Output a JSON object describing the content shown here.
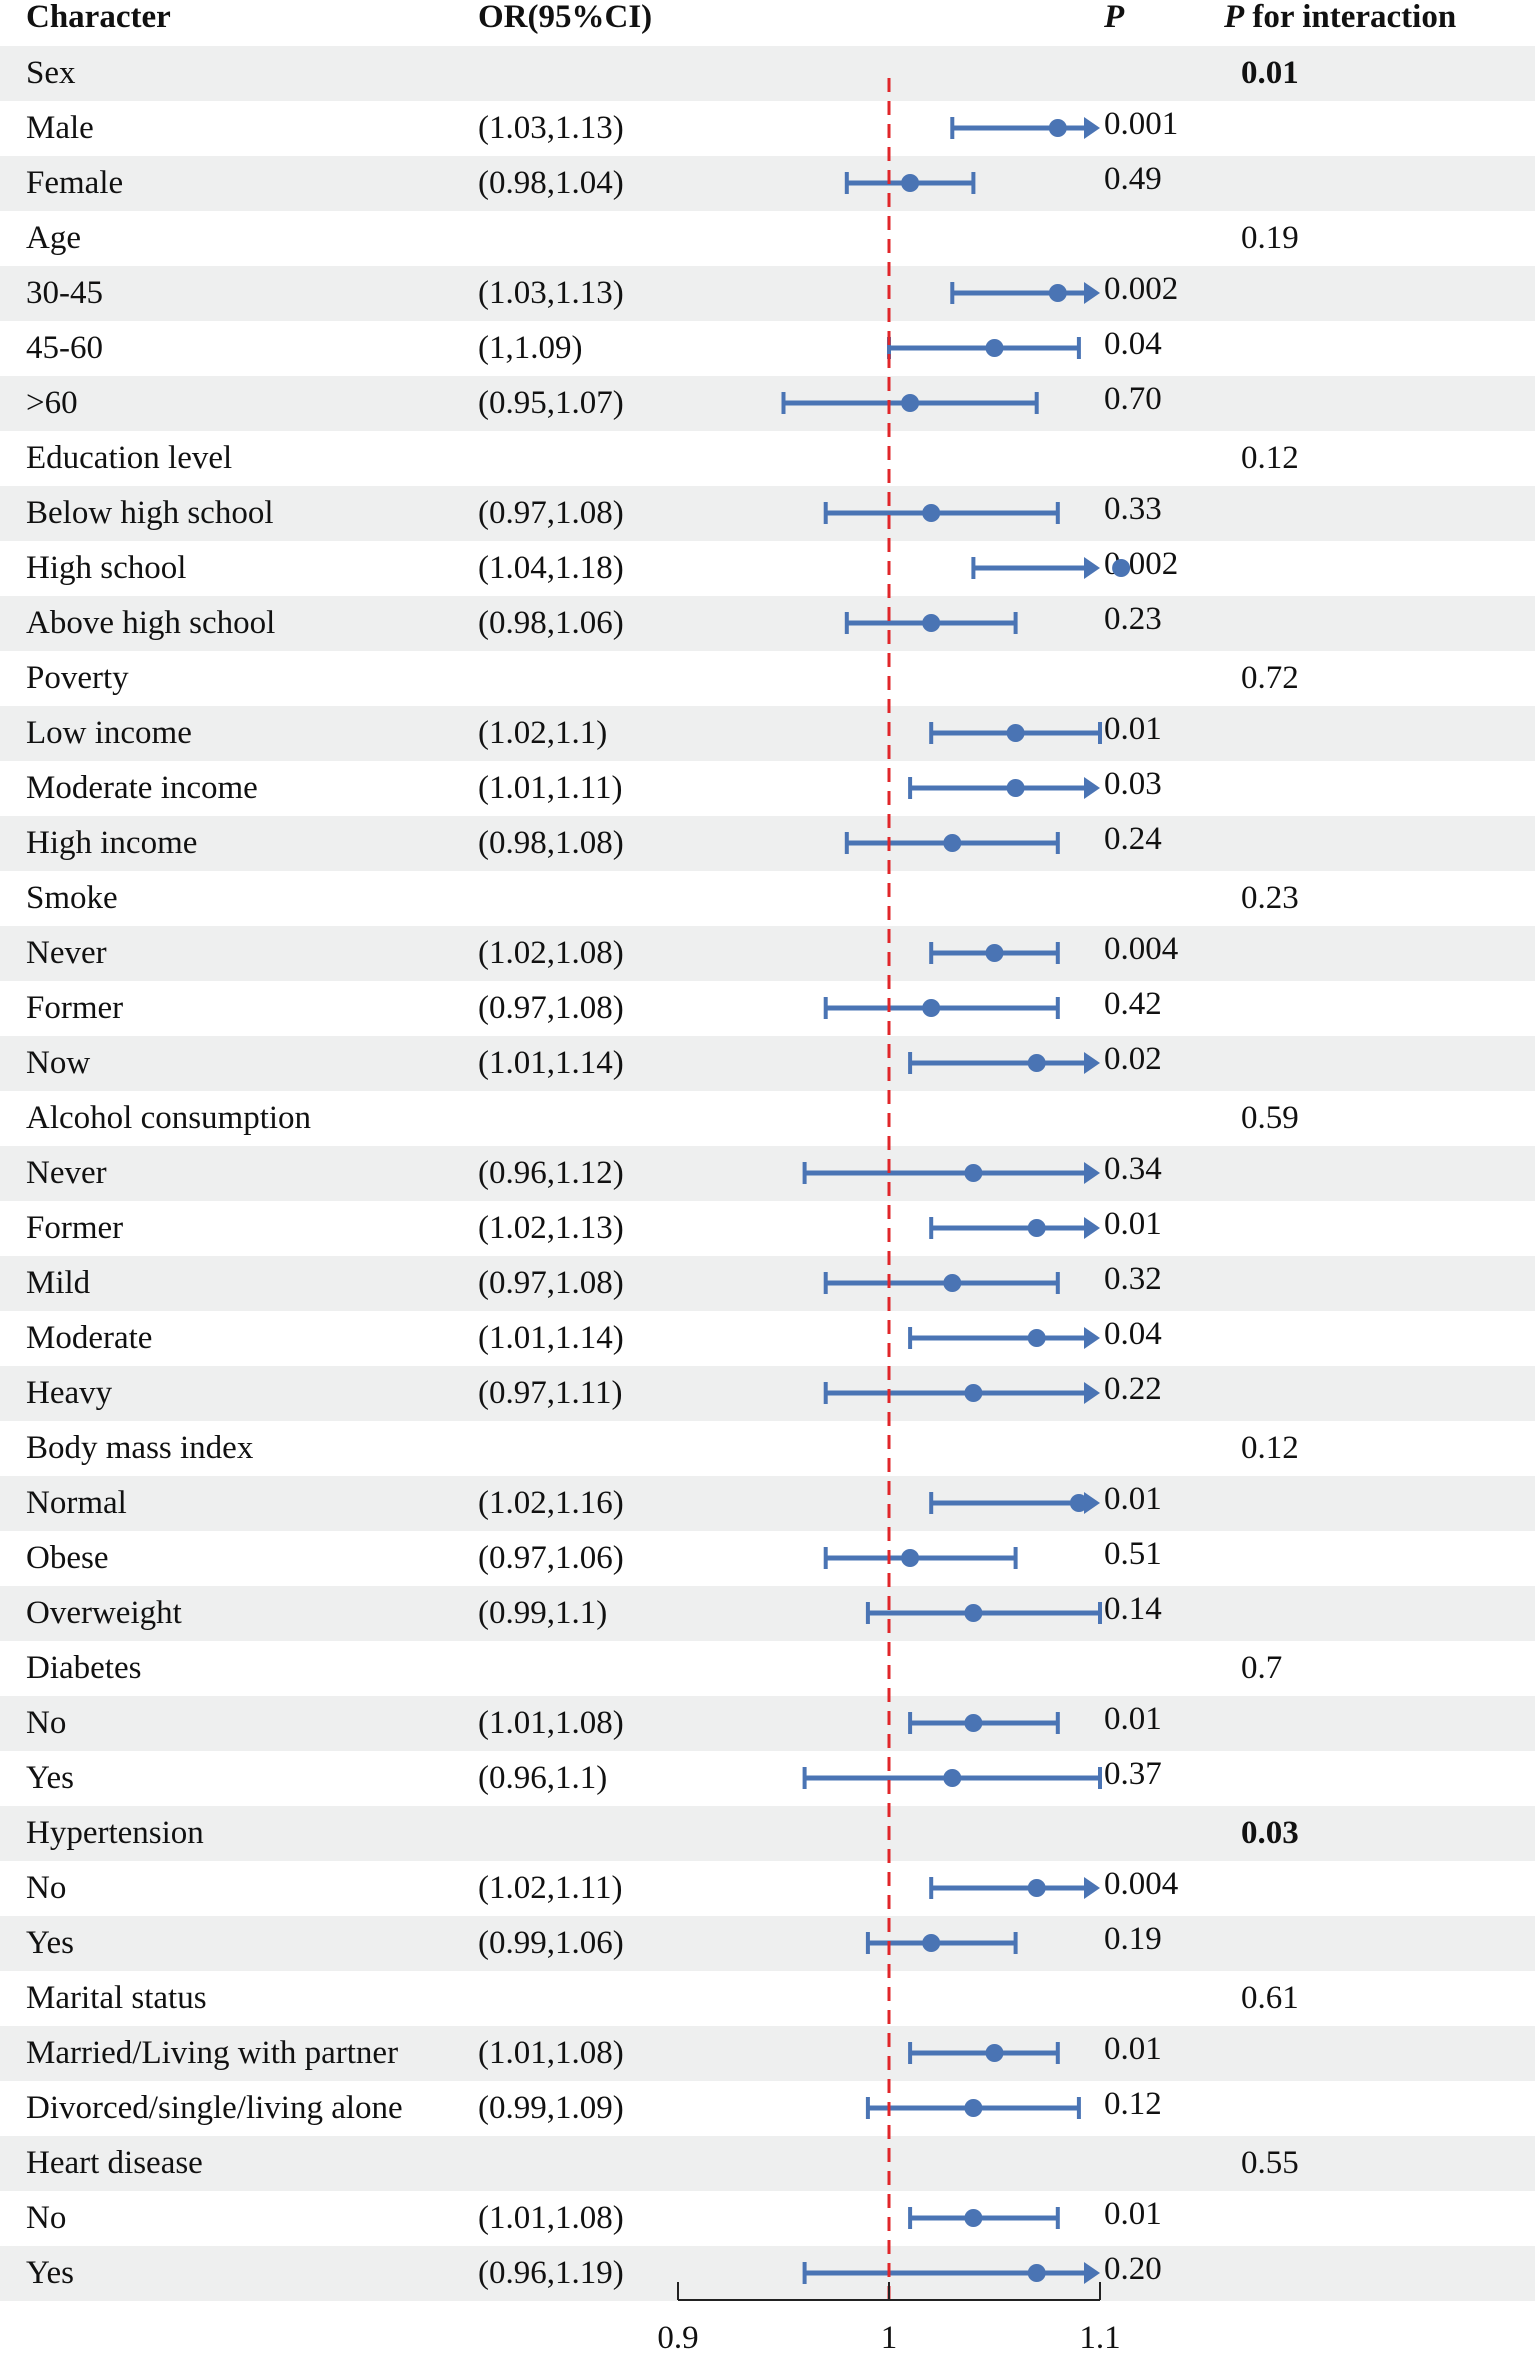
{
  "headers": {
    "character": "Character",
    "or_ci": "OR(95%CI)",
    "p": "P",
    "p_interaction_italic": "P",
    "p_interaction_rest": " for interaction"
  },
  "colors": {
    "point": "#4a74b4",
    "reference_line": "#e0262a",
    "shade": "#eeefef"
  },
  "chart_data": {
    "type": "forest",
    "reference_value": 1,
    "xlim": [
      0.9,
      1.1
    ],
    "x_ticks": [
      0.9,
      1,
      1.1
    ],
    "x_tick_labels": [
      "0.9",
      "1",
      "1.1"
    ],
    "rows": [
      {
        "label": "Sex",
        "group": true,
        "p_interaction": "0.01",
        "bold": true
      },
      {
        "label": "Male",
        "ci": "(1.03,1.13)",
        "or": 1.08,
        "lo": 1.03,
        "hi": 1.13,
        "p": "0.001"
      },
      {
        "label": "Female",
        "ci": "(0.98,1.04)",
        "or": 1.01,
        "lo": 0.98,
        "hi": 1.04,
        "p": "0.49"
      },
      {
        "label": "Age",
        "group": true,
        "p_interaction": "0.19"
      },
      {
        "label": "30-45",
        "ci": "(1.03,1.13)",
        "or": 1.08,
        "lo": 1.03,
        "hi": 1.13,
        "p": "0.002"
      },
      {
        "label": "45-60",
        "ci": "(1,1.09)",
        "or": 1.05,
        "lo": 1.0,
        "hi": 1.09,
        "p": "0.04"
      },
      {
        "label": ">60",
        "ci": "(0.95,1.07)",
        "or": 1.01,
        "lo": 0.95,
        "hi": 1.07,
        "p": "0.70"
      },
      {
        "label": "Education level",
        "group": true,
        "p_interaction": "0.12"
      },
      {
        "label": "Below high school",
        "ci": "(0.97,1.08)",
        "or": 1.02,
        "lo": 0.97,
        "hi": 1.08,
        "p": "0.33"
      },
      {
        "label": "High school",
        "ci": "(1.04,1.18)",
        "or": 1.11,
        "lo": 1.04,
        "hi": 1.18,
        "p": "0.002"
      },
      {
        "label": "Above high school",
        "ci": "(0.98,1.06)",
        "or": 1.02,
        "lo": 0.98,
        "hi": 1.06,
        "p": "0.23"
      },
      {
        "label": "Poverty",
        "group": true,
        "p_interaction": "0.72"
      },
      {
        "label": "Low income",
        "ci": "(1.02,1.1)",
        "or": 1.06,
        "lo": 1.02,
        "hi": 1.1,
        "p": "0.01"
      },
      {
        "label": "Moderate income",
        "ci": "(1.01,1.11)",
        "or": 1.06,
        "lo": 1.01,
        "hi": 1.11,
        "p": "0.03"
      },
      {
        "label": "High income",
        "ci": "(0.98,1.08)",
        "or": 1.03,
        "lo": 0.98,
        "hi": 1.08,
        "p": "0.24"
      },
      {
        "label": "Smoke",
        "group": true,
        "p_interaction": "0.23"
      },
      {
        "label": "Never",
        "ci": "(1.02,1.08)",
        "or": 1.05,
        "lo": 1.02,
        "hi": 1.08,
        "p": "0.004"
      },
      {
        "label": "Former",
        "ci": "(0.97,1.08)",
        "or": 1.02,
        "lo": 0.97,
        "hi": 1.08,
        "p": "0.42"
      },
      {
        "label": "Now",
        "ci": "(1.01,1.14)",
        "or": 1.07,
        "lo": 1.01,
        "hi": 1.14,
        "p": "0.02"
      },
      {
        "label": "Alcohol consumption",
        "group": true,
        "p_interaction": "0.59"
      },
      {
        "label": "Never",
        "ci": "(0.96,1.12)",
        "or": 1.04,
        "lo": 0.96,
        "hi": 1.12,
        "p": "0.34"
      },
      {
        "label": "Former",
        "ci": "(1.02,1.13)",
        "or": 1.07,
        "lo": 1.02,
        "hi": 1.13,
        "p": "0.01"
      },
      {
        "label": "Mild",
        "ci": "(0.97,1.08)",
        "or": 1.03,
        "lo": 0.97,
        "hi": 1.08,
        "p": "0.32"
      },
      {
        "label": "Moderate",
        "ci": "(1.01,1.14)",
        "or": 1.07,
        "lo": 1.01,
        "hi": 1.14,
        "p": "0.04"
      },
      {
        "label": "Heavy",
        "ci": "(0.97,1.11)",
        "or": 1.04,
        "lo": 0.97,
        "hi": 1.11,
        "p": "0.22"
      },
      {
        "label": "Body mass index",
        "group": true,
        "p_interaction": "0.12"
      },
      {
        "label": "Normal",
        "ci": "(1.02,1.16)",
        "or": 1.09,
        "lo": 1.02,
        "hi": 1.16,
        "p": "0.01"
      },
      {
        "label": "Obese",
        "ci": "(0.97,1.06)",
        "or": 1.01,
        "lo": 0.97,
        "hi": 1.06,
        "p": "0.51"
      },
      {
        "label": "Overweight",
        "ci": "(0.99,1.1)",
        "or": 1.04,
        "lo": 0.99,
        "hi": 1.1,
        "p": "0.14"
      },
      {
        "label": "Diabetes",
        "group": true,
        "p_interaction": "0.7"
      },
      {
        "label": "No",
        "ci": "(1.01,1.08)",
        "or": 1.04,
        "lo": 1.01,
        "hi": 1.08,
        "p": "0.01"
      },
      {
        "label": "Yes",
        "ci": "(0.96,1.1)",
        "or": 1.03,
        "lo": 0.96,
        "hi": 1.1,
        "p": "0.37"
      },
      {
        "label": "Hypertension",
        "group": true,
        "p_interaction": "0.03",
        "bold": true
      },
      {
        "label": "No",
        "ci": "(1.02,1.11)",
        "or": 1.07,
        "lo": 1.02,
        "hi": 1.11,
        "p": "0.004"
      },
      {
        "label": "Yes",
        "ci": "(0.99,1.06)",
        "or": 1.02,
        "lo": 0.99,
        "hi": 1.06,
        "p": "0.19"
      },
      {
        "label": "Marital status",
        "group": true,
        "p_interaction": "0.61"
      },
      {
        "label": "Married/Living with partner",
        "ci": "(1.01,1.08)",
        "or": 1.05,
        "lo": 1.01,
        "hi": 1.08,
        "p": "0.01"
      },
      {
        "label": "Divorced/single/living alone",
        "ci": "(0.99,1.09)",
        "or": 1.04,
        "lo": 0.99,
        "hi": 1.09,
        "p": "0.12"
      },
      {
        "label": "Heart disease",
        "group": true,
        "p_interaction": "0.55"
      },
      {
        "label": "No",
        "ci": "(1.01,1.08)",
        "or": 1.04,
        "lo": 1.01,
        "hi": 1.08,
        "p": "0.01"
      },
      {
        "label": "Yes",
        "ci": "(0.96,1.19)",
        "or": 1.07,
        "lo": 0.96,
        "hi": 1.19,
        "p": "0.20"
      }
    ]
  }
}
